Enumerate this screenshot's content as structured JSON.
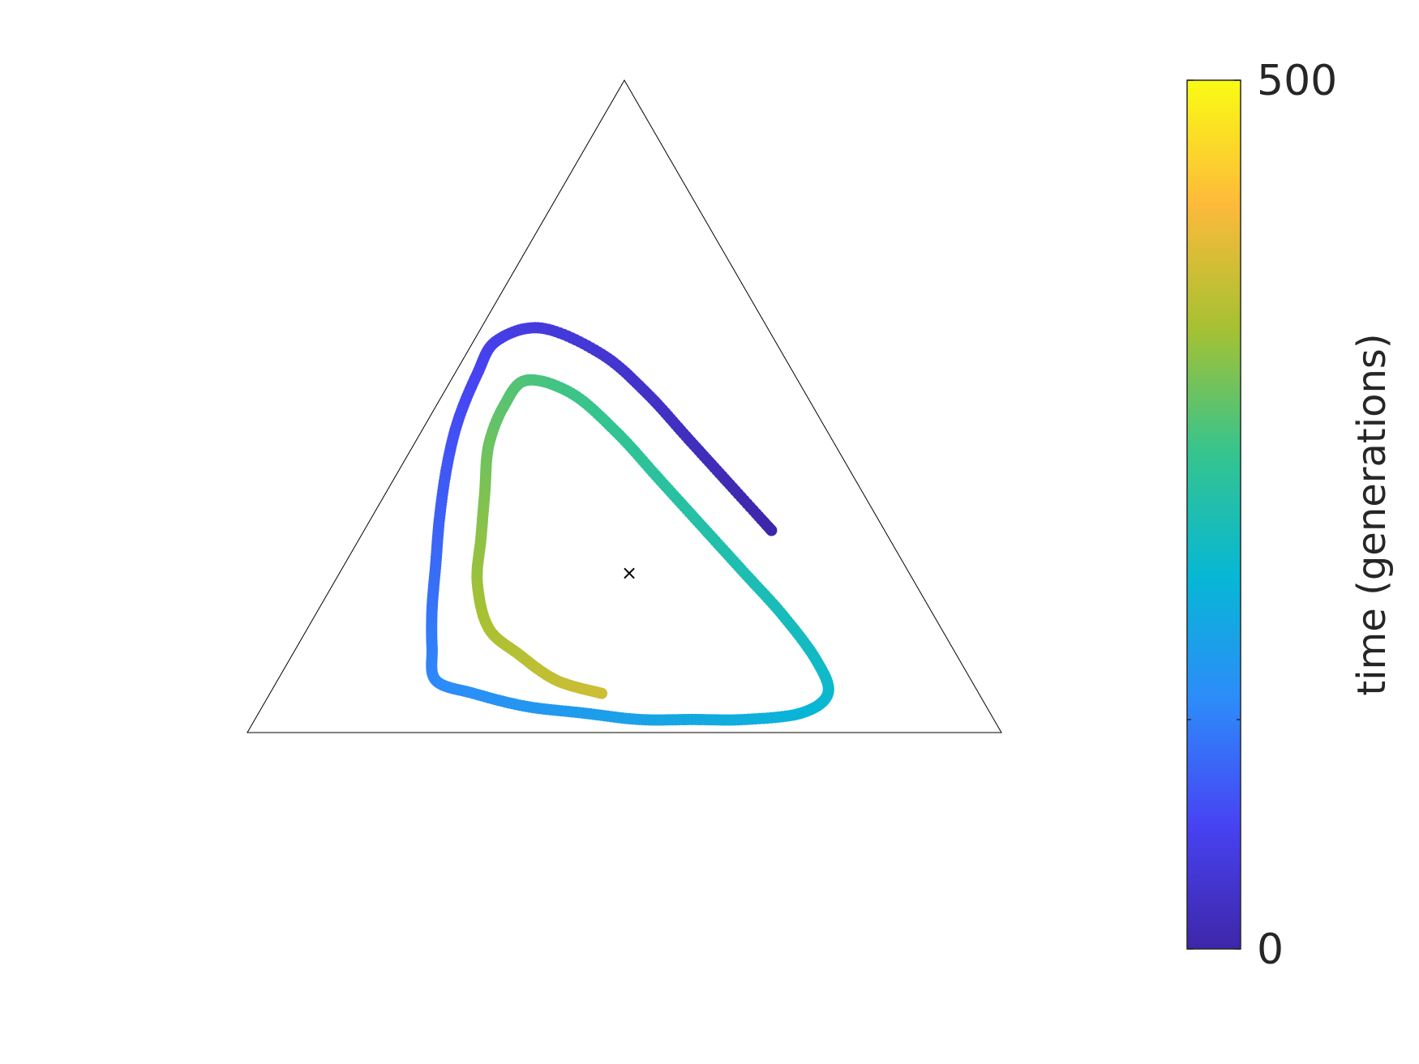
{
  "chart_data": {
    "type": "scatter",
    "plot": "ternary simplex trajectory",
    "axes_visible": false,
    "grid": false,
    "center_marker": {
      "symbol": "×",
      "color": "#000000"
    },
    "colorbar": {
      "label": "time (generations)",
      "min_label": "0",
      "max_label": "500",
      "range": [
        0,
        500
      ],
      "colormap": "parula",
      "colormap_stops": [
        "#3e26a8",
        "#4743f3",
        "#2d8bfa",
        "#07b7d5",
        "#35c48e",
        "#a6c132",
        "#fdba3a",
        "#f9fb14"
      ],
      "placement": "right"
    },
    "trajectory": {
      "description_points": "simplex coordinates (a = top vertex, b = bottom-left, c = bottom-right) at given generation t",
      "points": [
        {
          "t": 0,
          "a": 0.31,
          "b": 0.15,
          "c": 0.54
        },
        {
          "t": 10,
          "a": 0.38,
          "b": 0.17,
          "c": 0.45
        },
        {
          "t": 20,
          "a": 0.45,
          "b": 0.19,
          "c": 0.36
        },
        {
          "t": 30,
          "a": 0.52,
          "b": 0.21,
          "c": 0.27
        },
        {
          "t": 40,
          "a": 0.58,
          "b": 0.24,
          "c": 0.18
        },
        {
          "t": 50,
          "a": 0.62,
          "b": 0.3,
          "c": 0.08
        },
        {
          "t": 60,
          "a": 0.6,
          "b": 0.37,
          "c": 0.03
        },
        {
          "t": 70,
          "a": 0.55,
          "b": 0.42,
          "c": 0.03
        },
        {
          "t": 80,
          "a": 0.48,
          "b": 0.48,
          "c": 0.04
        },
        {
          "t": 90,
          "a": 0.41,
          "b": 0.53,
          "c": 0.06
        },
        {
          "t": 100,
          "a": 0.33,
          "b": 0.58,
          "c": 0.09
        },
        {
          "t": 110,
          "a": 0.26,
          "b": 0.62,
          "c": 0.12
        },
        {
          "t": 120,
          "a": 0.19,
          "b": 0.66,
          "c": 0.15
        },
        {
          "t": 130,
          "a": 0.13,
          "b": 0.69,
          "c": 0.18
        },
        {
          "t": 140,
          "a": 0.08,
          "b": 0.71,
          "c": 0.21
        },
        {
          "t": 150,
          "a": 0.06,
          "b": 0.67,
          "c": 0.27
        },
        {
          "t": 160,
          "a": 0.04,
          "b": 0.61,
          "c": 0.35
        },
        {
          "t": 170,
          "a": 0.03,
          "b": 0.54,
          "c": 0.43
        },
        {
          "t": 180,
          "a": 0.02,
          "b": 0.47,
          "c": 0.51
        },
        {
          "t": 190,
          "a": 0.02,
          "b": 0.4,
          "c": 0.58
        },
        {
          "t": 200,
          "a": 0.02,
          "b": 0.33,
          "c": 0.65
        },
        {
          "t": 210,
          "a": 0.03,
          "b": 0.25,
          "c": 0.72
        },
        {
          "t": 220,
          "a": 0.06,
          "b": 0.2,
          "c": 0.74
        },
        {
          "t": 230,
          "a": 0.11,
          "b": 0.19,
          "c": 0.7
        },
        {
          "t": 240,
          "a": 0.18,
          "b": 0.2,
          "c": 0.62
        },
        {
          "t": 250,
          "a": 0.25,
          "b": 0.22,
          "c": 0.53
        },
        {
          "t": 260,
          "a": 0.32,
          "b": 0.24,
          "c": 0.44
        },
        {
          "t": 270,
          "a": 0.39,
          "b": 0.26,
          "c": 0.35
        },
        {
          "t": 280,
          "a": 0.46,
          "b": 0.28,
          "c": 0.26
        },
        {
          "t": 290,
          "a": 0.52,
          "b": 0.31,
          "c": 0.17
        },
        {
          "t": 300,
          "a": 0.54,
          "b": 0.36,
          "c": 0.1
        },
        {
          "t": 310,
          "a": 0.5,
          "b": 0.41,
          "c": 0.09
        },
        {
          "t": 320,
          "a": 0.44,
          "b": 0.46,
          "c": 0.1
        },
        {
          "t": 330,
          "a": 0.37,
          "b": 0.5,
          "c": 0.13
        },
        {
          "t": 340,
          "a": 0.3,
          "b": 0.54,
          "c": 0.16
        },
        {
          "t": 350,
          "a": 0.23,
          "b": 0.58,
          "c": 0.19
        },
        {
          "t": 360,
          "a": 0.16,
          "b": 0.6,
          "c": 0.24
        },
        {
          "t": 370,
          "a": 0.12,
          "b": 0.58,
          "c": 0.3
        },
        {
          "t": 380,
          "a": 0.08,
          "b": 0.55,
          "c": 0.37
        },
        {
          "t": 390,
          "a": 0.06,
          "b": 0.5,
          "c": 0.44
        }
      ]
    }
  }
}
